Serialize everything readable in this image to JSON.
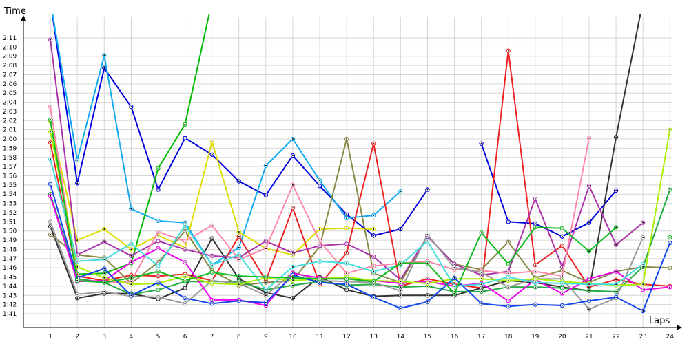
{
  "chart_data": {
    "type": "line",
    "title": "",
    "xlabel": "Laps",
    "ylabel": "Time",
    "x": [
      1,
      2,
      3,
      4,
      5,
      6,
      7,
      8,
      9,
      10,
      11,
      12,
      13,
      14,
      15,
      16,
      17,
      18,
      19,
      20,
      21,
      22,
      23,
      24
    ],
    "xlim": [
      0,
      24.3
    ],
    "ylim": [
      100,
      132
    ],
    "y_ticks": [
      {
        "v": 101,
        "label": "1:41"
      },
      {
        "v": 102,
        "label": "1:42"
      },
      {
        "v": 103,
        "label": "1:43"
      },
      {
        "v": 104,
        "label": "1:44"
      },
      {
        "v": 105,
        "label": "1:45"
      },
      {
        "v": 106,
        "label": "1:46"
      },
      {
        "v": 107,
        "label": "1:47"
      },
      {
        "v": 108,
        "label": "1:48"
      },
      {
        "v": 109,
        "label": "1:49"
      },
      {
        "v": 110,
        "label": "1:50"
      },
      {
        "v": 111,
        "label": "1:51"
      },
      {
        "v": 112,
        "label": "1:52"
      },
      {
        "v": 113,
        "label": "1:53"
      },
      {
        "v": 114,
        "label": "1:54"
      },
      {
        "v": 115,
        "label": "1:55"
      },
      {
        "v": 116,
        "label": "1:56"
      },
      {
        "v": 117,
        "label": "1:57"
      },
      {
        "v": 118,
        "label": "1:58"
      },
      {
        "v": 119,
        "label": "1:59"
      },
      {
        "v": 120,
        "label": "2:00"
      },
      {
        "v": 121,
        "label": "2:01"
      },
      {
        "v": 122,
        "label": "2:02"
      },
      {
        "v": 123,
        "label": "2:03"
      },
      {
        "v": 124,
        "label": "2:04"
      },
      {
        "v": 125,
        "label": "2:05"
      },
      {
        "v": 126,
        "label": "2:06"
      },
      {
        "v": 127,
        "label": "2:07"
      },
      {
        "v": 128,
        "label": "2:08"
      },
      {
        "v": 129,
        "label": "2:09"
      },
      {
        "v": 130,
        "label": "2:10"
      },
      {
        "v": 131,
        "label": "2:11"
      }
    ],
    "grid": true,
    "legend": "none",
    "series": [
      {
        "color": "#0000dd",
        "values": [
          135,
          115.2,
          127.7,
          123.5,
          114.5,
          120.1,
          118.3,
          115.4,
          113.9,
          118.2,
          114.9,
          111.8,
          109.5,
          110.2,
          114.5,
          null,
          119.5,
          111,
          110.8,
          109.4,
          110.9,
          114.4,
          null,
          null
        ]
      },
      {
        "color": "#11aaee",
        "values": [
          135,
          117.7,
          129.1,
          112.4,
          111.1,
          110.9,
          106.3,
          108.2,
          117.1,
          120,
          115.5,
          111.4,
          111.7,
          114.3,
          null,
          null,
          null,
          null,
          null,
          null,
          null,
          null,
          null,
          null
        ]
      },
      {
        "color": "#00bb00",
        "values": [
          122,
          105.3,
          105.4,
          106.5,
          116.8,
          121.6,
          135,
          null,
          null,
          null,
          null,
          null,
          null,
          null,
          null,
          null,
          null,
          null,
          null,
          null,
          null,
          null,
          null,
          null
        ]
      },
      {
        "color": "#dddd00",
        "values": [
          121.9,
          109,
          110.2,
          108,
          109.5,
          108.2,
          119.7,
          109.9,
          108.1,
          107.4,
          110.2,
          110.3,
          110.2,
          null,
          null,
          null,
          null,
          null,
          null,
          null,
          null,
          null,
          null,
          null
        ]
      },
      {
        "color": "#ee2222",
        "values": [
          119.6,
          105.1,
          104.6,
          105.2,
          105.1,
          105.3,
          104.6,
          109.4,
          104.6,
          112.5,
          104.2,
          107.6,
          119.5,
          104,
          104.8,
          104.2,
          103.8,
          129.6,
          106.3,
          108.4,
          103.9,
          104.7,
          104.2,
          104
        ]
      },
      {
        "color": "#333333",
        "values": [
          110.5,
          102.7,
          103.2,
          103.2,
          102.6,
          103.8,
          109.2,
          104.8,
          103.3,
          102.7,
          105,
          103.6,
          102.9,
          103,
          103,
          103,
          103.8,
          104.6,
          104.4,
          103.9,
          103.5,
          120.2,
          135,
          null
        ]
      },
      {
        "color": "#888844",
        "values": [
          109.6,
          107.4,
          107.1,
          104.3,
          106.6,
          110,
          105.7,
          104.1,
          104.4,
          104.6,
          108.3,
          120,
          105.4,
          104.4,
          109.4,
          106.4,
          105.8,
          108.8,
          104.9,
          105.7,
          104.4,
          105.6,
          106.1,
          106
        ]
      },
      {
        "color": "#aa33aa",
        "values": [
          130.8,
          107.4,
          108.8,
          107.3,
          108.9,
          108,
          107.3,
          107.1,
          108.9,
          107.6,
          108.4,
          108.6,
          107.2,
          104.7,
          109.4,
          106.4,
          105.2,
          105.6,
          113.5,
          106.1,
          114.9,
          108.5,
          110.9,
          null
        ]
      },
      {
        "color": "#ff88aa",
        "values": [
          123.5,
          104.8,
          104.4,
          104.5,
          109.9,
          108.9,
          110.6,
          106.9,
          108.1,
          115,
          108.9,
          105.4,
          106.2,
          106.5,
          106.7,
          105.8,
          105.7,
          105.4,
          105.6,
          105.1,
          120.1,
          null,
          null,
          null
        ]
      },
      {
        "color": "#22aa44",
        "values": [
          114,
          104.8,
          104.4,
          103.1,
          103.6,
          104.5,
          104.5,
          104.5,
          103.6,
          104.1,
          104.5,
          104.1,
          104.2,
          103.9,
          104,
          103.4,
          103.4,
          103.9,
          103.9,
          103.8,
          103.5,
          103.4,
          106.1,
          114.5
        ]
      },
      {
        "color": "#999999",
        "values": [
          111,
          103.1,
          103.4,
          102.9,
          102.8,
          102.1,
          104.6,
          104.3,
          103,
          105.5,
          104.6,
          104.5,
          104.4,
          103.5,
          109.6,
          106,
          105.5,
          103.9,
          104.8,
          104.8,
          101.5,
          102.7,
          109.3,
          null
        ]
      },
      {
        "color": "#ee00ee",
        "values": [
          113.8,
          104.5,
          104.6,
          106.6,
          108.1,
          106.6,
          102.5,
          102.5,
          101.9,
          105.4,
          104.9,
          104.8,
          104.6,
          104.3,
          104.5,
          104,
          104.3,
          102.4,
          104.7,
          103.2,
          104.8,
          105.6,
          103.6,
          103.9
        ]
      },
      {
        "color": "#aaee00",
        "values": [
          120.8,
          106.1,
          104.9,
          104.2,
          104.3,
          105.1,
          104.3,
          104.2,
          104.9,
          104.6,
          104.8,
          105,
          104.6,
          104.5,
          104.3,
          104.8,
          104.8,
          104.6,
          104.8,
          104.5,
          104.3,
          104.1,
          104.2,
          121
        ]
      },
      {
        "color": "#1144ee",
        "values": [
          115.1,
          104.9,
          105.9,
          103,
          104.4,
          102.7,
          102.1,
          102.4,
          102.2,
          105.2,
          104.4,
          104.2,
          102.8,
          101.6,
          102.3,
          104.9,
          102.1,
          101.8,
          102,
          101.9,
          102.4,
          102.8,
          101.3,
          108.7
        ]
      },
      {
        "color": "#44dddd",
        "values": [
          117.8,
          106.7,
          106.9,
          108.6,
          106.2,
          110.6,
          106.3,
          107.4,
          103.6,
          106.1,
          106.7,
          106.5,
          105.6,
          106.3,
          108.9,
          104,
          104.2,
          105,
          104.4,
          104.3,
          104.2,
          104.2,
          106.4,
          null
        ]
      },
      {
        "color": "#11bb22",
        "values": [
          122.1,
          104.6,
          104.4,
          104.9,
          105.6,
          104.6,
          105.5,
          105.1,
          105,
          104.9,
          104.8,
          104.8,
          104.5,
          106.5,
          106.5,
          103.2,
          109.8,
          106.4,
          110.4,
          110.3,
          107.8,
          110.4,
          null,
          109.3
        ]
      }
    ]
  }
}
